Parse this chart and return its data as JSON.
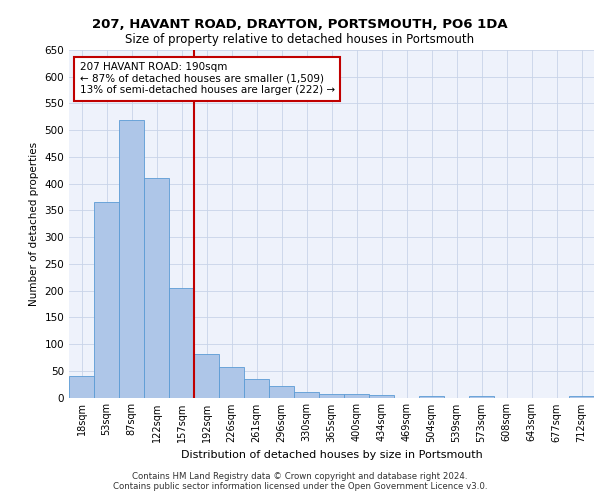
{
  "title1": "207, HAVANT ROAD, DRAYTON, PORTSMOUTH, PO6 1DA",
  "title2": "Size of property relative to detached houses in Portsmouth",
  "xlabel": "Distribution of detached houses by size in Portsmouth",
  "ylabel": "Number of detached properties",
  "categories": [
    "18sqm",
    "53sqm",
    "87sqm",
    "122sqm",
    "157sqm",
    "192sqm",
    "226sqm",
    "261sqm",
    "296sqm",
    "330sqm",
    "365sqm",
    "400sqm",
    "434sqm",
    "469sqm",
    "504sqm",
    "539sqm",
    "573sqm",
    "608sqm",
    "643sqm",
    "677sqm",
    "712sqm"
  ],
  "values": [
    40,
    365,
    520,
    410,
    204,
    82,
    57,
    35,
    22,
    10,
    6,
    6,
    4,
    0,
    3,
    0,
    2,
    0,
    0,
    0,
    2
  ],
  "bar_color": "#aec6e8",
  "bar_edge_color": "#5b9bd5",
  "vline_x": 4.5,
  "vline_color": "#c00000",
  "annotation_text": "207 HAVANT ROAD: 190sqm\n← 87% of detached houses are smaller (1,509)\n13% of semi-detached houses are larger (222) →",
  "annotation_box_color": "#ffffff",
  "annotation_box_edge": "#c00000",
  "ylim": [
    0,
    650
  ],
  "yticks": [
    0,
    50,
    100,
    150,
    200,
    250,
    300,
    350,
    400,
    450,
    500,
    550,
    600,
    650
  ],
  "footer1": "Contains HM Land Registry data © Crown copyright and database right 2024.",
  "footer2": "Contains public sector information licensed under the Open Government Licence v3.0.",
  "bg_color": "#eef2fb",
  "grid_color": "#c8d4e8"
}
